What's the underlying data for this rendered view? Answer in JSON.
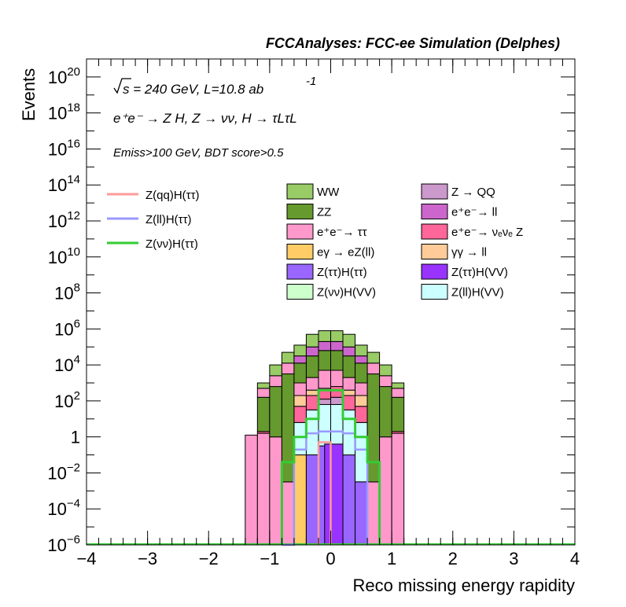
{
  "chart_data": {
    "type": "bar",
    "title": "FCCAnalyses: FCC-ee Simulation (Delphes)",
    "xlabel": "Reco missing energy rapidity",
    "ylabel": "Events",
    "xlim": [
      -4,
      4
    ],
    "ylim_exponent": [
      -6,
      21
    ],
    "yscale": "log",
    "bin_edges": [
      -4.0,
      -3.8,
      -3.6,
      -3.4,
      -3.2,
      -3.0,
      -2.8,
      -2.6,
      -2.4,
      -2.2,
      -2.0,
      -1.8,
      -1.6,
      -1.4,
      -1.2,
      -1.0,
      -0.8,
      -0.6,
      -0.4,
      -0.2,
      0.0,
      0.2,
      0.4,
      0.6,
      0.8,
      1.0,
      1.2,
      1.4,
      1.6,
      1.8,
      2.0,
      2.2,
      2.4,
      2.6,
      2.8,
      3.0,
      3.2,
      3.4,
      3.6,
      3.8,
      4.0
    ],
    "xticks": [
      {
        "v": -4,
        "label": "−4"
      },
      {
        "v": -3,
        "label": "−3"
      },
      {
        "v": -2,
        "label": "−2"
      },
      {
        "v": -1,
        "label": "−1"
      },
      {
        "v": 0,
        "label": "0"
      },
      {
        "v": 1,
        "label": "1"
      },
      {
        "v": 2,
        "label": "2"
      },
      {
        "v": 3,
        "label": "3"
      },
      {
        "v": 4,
        "label": "4"
      }
    ],
    "yticks": [
      {
        "exp": -6,
        "base": "10",
        "sup": "−6"
      },
      {
        "exp": -4,
        "base": "10",
        "sup": "−4"
      },
      {
        "exp": -2,
        "base": "10",
        "sup": "−2"
      },
      {
        "exp": 0,
        "base": "1",
        "sup": ""
      },
      {
        "exp": 2,
        "base": "10",
        "sup": "2"
      },
      {
        "exp": 4,
        "base": "10",
        "sup": "4"
      },
      {
        "exp": 6,
        "base": "10",
        "sup": "6"
      },
      {
        "exp": 8,
        "base": "10",
        "sup": "8"
      },
      {
        "exp": 10,
        "base": "10",
        "sup": "10"
      },
      {
        "exp": 12,
        "base": "10",
        "sup": "12"
      },
      {
        "exp": 14,
        "base": "10",
        "sup": "14"
      },
      {
        "exp": 16,
        "base": "10",
        "sup": "16"
      },
      {
        "exp": 18,
        "base": "10",
        "sup": "18"
      },
      {
        "exp": 20,
        "base": "10",
        "sup": "20"
      }
    ],
    "stack_columns": [
      {
        "x0": -1.4,
        "x1": -1.2,
        "layers": [
          {
            "color": "#ff99cc",
            "to": 0.1
          }
        ]
      },
      {
        "x0": -1.2,
        "x1": -1.0,
        "layers": [
          {
            "color": "#ff99cc",
            "to": 0.2
          },
          {
            "color": "#ff6699",
            "to": 0.3
          },
          {
            "color": "#66992e",
            "to": 2.2
          },
          {
            "color": "#ff99cc",
            "to": 2.7
          },
          {
            "color": "#99cc66",
            "to": 3.0
          }
        ]
      },
      {
        "x0": -1.0,
        "x1": -0.8,
        "layers": [
          {
            "color": "#ff99cc",
            "to": 0.0
          },
          {
            "color": "#66992e",
            "to": 2.8
          },
          {
            "color": "#ff99cc",
            "to": 3.4
          },
          {
            "color": "#99cc66",
            "to": 4.0
          }
        ]
      },
      {
        "x0": -0.8,
        "x1": -0.6,
        "layers": [
          {
            "color": "#ff99cc",
            "to": -2.5
          },
          {
            "color": "#66992e",
            "to": 3.5
          },
          {
            "color": "#ff99cc",
            "to": 4.1
          },
          {
            "color": "#99cc66",
            "to": 4.7
          }
        ]
      },
      {
        "x0": -0.6,
        "x1": -0.4,
        "layers": [
          {
            "color": "#ff99cc",
            "to": -6.0
          },
          {
            "color": "#ffcc66",
            "to": -1.0
          },
          {
            "color": "#ccffff",
            "to": 0.8
          },
          {
            "color": "#ff6699",
            "to": 1.7
          },
          {
            "color": "#ffcc99",
            "to": 2.3
          },
          {
            "color": "#ff99cc",
            "to": 3.0
          },
          {
            "color": "#66992e",
            "to": 4.1
          },
          {
            "color": "#cc66cc",
            "to": 4.5
          },
          {
            "color": "#99cc66",
            "to": 5.1
          }
        ]
      },
      {
        "x0": -0.4,
        "x1": -0.2,
        "layers": [
          {
            "color": "#9966ff",
            "to": -1.0
          },
          {
            "color": "#ccffff",
            "to": 1.5
          },
          {
            "color": "#ff6699",
            "to": 2.3
          },
          {
            "color": "#ffcc99",
            "to": 2.6
          },
          {
            "color": "#ff99cc",
            "to": 3.3
          },
          {
            "color": "#66992e",
            "to": 4.5
          },
          {
            "color": "#cc66cc",
            "to": 5.0
          },
          {
            "color": "#99cc66",
            "to": 5.7
          }
        ]
      },
      {
        "x0": -0.2,
        "x1": 0.0,
        "layers": [
          {
            "color": "#9966ff",
            "to": -0.5
          },
          {
            "color": "#ccffff",
            "to": 1.8
          },
          {
            "color": "#cc99cc",
            "to": 2.1
          },
          {
            "color": "#ff6699",
            "to": 2.7
          },
          {
            "color": "#ff99cc",
            "to": 3.7
          },
          {
            "color": "#66992e",
            "to": 4.8
          },
          {
            "color": "#cc66cc",
            "to": 5.3
          },
          {
            "color": "#99cc66",
            "to": 5.9
          }
        ]
      },
      {
        "x0": 0.0,
        "x1": 0.2,
        "layers": [
          {
            "color": "#9966ff",
            "to": -0.5
          },
          {
            "color": "#ccffff",
            "to": 1.8
          },
          {
            "color": "#cc99cc",
            "to": 2.2
          },
          {
            "color": "#ff6699",
            "to": 2.8
          },
          {
            "color": "#ff99cc",
            "to": 3.7
          },
          {
            "color": "#66992e",
            "to": 4.8
          },
          {
            "color": "#cc66cc",
            "to": 5.3
          },
          {
            "color": "#99cc66",
            "to": 5.9
          }
        ]
      },
      {
        "x0": 0.2,
        "x1": 0.4,
        "layers": [
          {
            "color": "#9966ff",
            "to": -1.0
          },
          {
            "color": "#ccffff",
            "to": 1.5
          },
          {
            "color": "#ff6699",
            "to": 2.3
          },
          {
            "color": "#ffcc99",
            "to": 2.6
          },
          {
            "color": "#ff99cc",
            "to": 3.3
          },
          {
            "color": "#66992e",
            "to": 4.5
          },
          {
            "color": "#cc66cc",
            "to": 5.0
          },
          {
            "color": "#99cc66",
            "to": 5.7
          }
        ]
      },
      {
        "x0": 0.4,
        "x1": 0.6,
        "layers": [
          {
            "color": "#9966ff",
            "to": -2.5
          },
          {
            "color": "#ccffff",
            "to": 0.8
          },
          {
            "color": "#ff6699",
            "to": 1.7
          },
          {
            "color": "#ffcc99",
            "to": 2.3
          },
          {
            "color": "#ff99cc",
            "to": 3.0
          },
          {
            "color": "#66992e",
            "to": 4.1
          },
          {
            "color": "#cc66cc",
            "to": 4.5
          },
          {
            "color": "#99cc66",
            "to": 5.1
          }
        ]
      },
      {
        "x0": 0.6,
        "x1": 0.8,
        "layers": [
          {
            "color": "#ff99cc",
            "to": -2.5
          },
          {
            "color": "#66992e",
            "to": 3.5
          },
          {
            "color": "#ff99cc",
            "to": 4.1
          },
          {
            "color": "#99cc66",
            "to": 4.7
          }
        ]
      },
      {
        "x0": 0.8,
        "x1": 1.0,
        "layers": [
          {
            "color": "#ff99cc",
            "to": 0.0
          },
          {
            "color": "#66992e",
            "to": 2.8
          },
          {
            "color": "#ff99cc",
            "to": 3.4
          },
          {
            "color": "#99cc66",
            "to": 4.0
          }
        ]
      },
      {
        "x0": 1.0,
        "x1": 1.2,
        "layers": [
          {
            "color": "#ff99cc",
            "to": 0.2
          },
          {
            "color": "#ff6699",
            "to": 0.3
          },
          {
            "color": "#66992e",
            "to": 2.2
          },
          {
            "color": "#ff99cc",
            "to": 2.7
          },
          {
            "color": "#99cc66",
            "to": 3.0
          }
        ]
      }
    ],
    "filled_overlays": [
      {
        "x0": -0.4,
        "x1": -0.2,
        "from": -6,
        "to": -1.0,
        "color": "#9966ff"
      },
      {
        "x0": -0.1,
        "x1": 0.0,
        "from": -6,
        "to": -0.4,
        "color": "#9933ff"
      },
      {
        "x0": 0.0,
        "x1": 0.2,
        "from": -6,
        "to": -0.4,
        "color": "#9933ff"
      },
      {
        "x0": 0.4,
        "x1": 0.6,
        "from": -6,
        "to": -2.5,
        "color": "#9966ff"
      }
    ],
    "line_series": [
      {
        "name": "Z(qq)H(ττ)",
        "color": "#ff9999",
        "steps": [
          [
            -0.2,
            -6
          ],
          [
            -0.2,
            -0.3
          ],
          [
            0.0,
            -0.3
          ],
          [
            0.0,
            -6
          ]
        ]
      },
      {
        "name": "Z(ll)H(ττ)",
        "color": "#9999ff",
        "steps": [
          [
            -0.8,
            -6
          ],
          [
            -0.6,
            -6
          ],
          [
            -0.6,
            -0.7
          ],
          [
            -0.4,
            -0.7
          ],
          [
            -0.4,
            0.2
          ],
          [
            -0.2,
            0.2
          ],
          [
            -0.2,
            0.3
          ],
          [
            0.2,
            0.3
          ],
          [
            0.2,
            0.2
          ],
          [
            0.4,
            0.2
          ],
          [
            0.4,
            -0.7
          ],
          [
            0.6,
            -0.7
          ],
          [
            0.6,
            -6
          ]
        ]
      },
      {
        "name": "Z(νν)H(ττ)",
        "color": "#33cc33",
        "steps": [
          [
            -0.8,
            -6
          ],
          [
            -0.8,
            -1.4
          ],
          [
            -0.6,
            -1.4
          ],
          [
            -0.6,
            0.0
          ],
          [
            -0.4,
            0.0
          ],
          [
            -0.4,
            1.0
          ],
          [
            -0.2,
            1.0
          ],
          [
            -0.2,
            2.6
          ],
          [
            0.2,
            2.6
          ],
          [
            0.2,
            1.0
          ],
          [
            0.4,
            1.0
          ],
          [
            0.4,
            0.0
          ],
          [
            0.6,
            0.0
          ],
          [
            0.6,
            -1.4
          ],
          [
            0.8,
            -1.4
          ],
          [
            0.8,
            -6
          ]
        ]
      }
    ],
    "legend_lines": [
      {
        "label": "Z(qq)H(ττ)",
        "color": "#ff9999"
      },
      {
        "label": "Z(ll)H(ττ)",
        "color": "#9999ff"
      },
      {
        "label": "Z(νν)H(ττ)",
        "color": "#33cc33"
      }
    ],
    "legend_fills": [
      {
        "label": "WW",
        "color": "#99cc66"
      },
      {
        "label": "Z → QQ",
        "color": "#cc99cc"
      },
      {
        "label": "ZZ",
        "color": "#66992e"
      },
      {
        "label": "e⁺e⁻→ ll",
        "color": "#cc66cc"
      },
      {
        "label": "e⁺e⁻→ ττ",
        "color": "#ff99cc"
      },
      {
        "label": "e⁺e⁻→ νₑνₑ Z",
        "color": "#ff6699"
      },
      {
        "label": "eγ → eZ(ll)",
        "color": "#ffcc66"
      },
      {
        "label": "γγ → ll",
        "color": "#ffcc99"
      },
      {
        "label": "Z(ττ)H(ττ)",
        "color": "#9966ff"
      },
      {
        "label": "Z(ττ)H(VV)",
        "color": "#9933ff"
      },
      {
        "label": "Z(νν)H(VV)",
        "color": "#ccffcc"
      },
      {
        "label": "Z(ll)H(VV)",
        "color": "#ccffff"
      }
    ],
    "annotations": {
      "sqrt_s": "s = 240 GeV, L=10.8 ab",
      "lumi_exp": "-1",
      "process": "e⁺e⁻ → Z H, Z → νν, H → τLτL",
      "cuts": "Emiss>100 GeV, BDT score>0.5"
    }
  }
}
